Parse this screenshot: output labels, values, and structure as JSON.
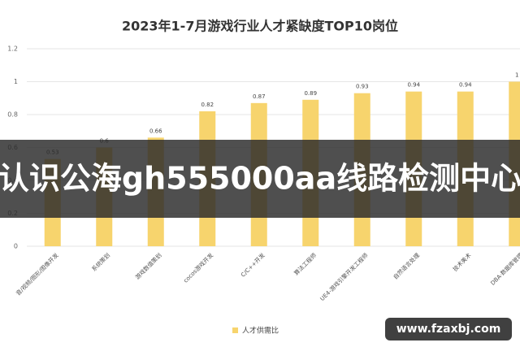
{
  "chart_data": {
    "type": "bar",
    "title": "2023年1-7月游戏行业人才紧缺度TOP10岗位",
    "categories": [
      "音/视频/图形/图像开发",
      "系统策划",
      "游戏数值策划",
      "cocos游戏开发",
      "C/C++开发",
      "算法工程师",
      "UE4-游戏引擎开发工程师",
      "自然语言处理",
      "技术美术",
      "DBA·数据库管理"
    ],
    "series": [
      {
        "name": "人才供需比",
        "color": "#f7d46d",
        "values": [
          0.53,
          0.6,
          0.66,
          0.82,
          0.87,
          0.89,
          0.93,
          0.94,
          0.94,
          1
        ]
      }
    ],
    "ylim": [
      0,
      1.2
    ],
    "yticks": [
      0,
      0.2,
      0.4,
      0.6,
      0.8,
      1,
      1.2
    ],
    "grid": true,
    "legend": "bottom"
  },
  "overlay": {
    "banner": "认识公海gh555000aa线路检测中心",
    "watermark": "www.fzaxbj.com"
  }
}
